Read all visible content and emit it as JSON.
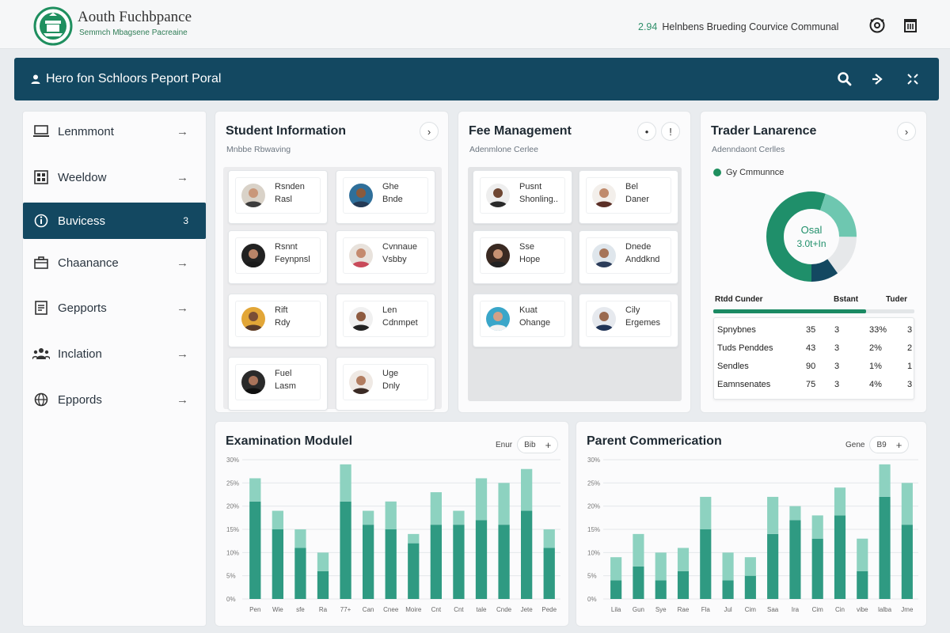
{
  "header": {
    "brand_title": "Aouth Fuchbpance",
    "brand_subtitle": "Semmch Mbagsene Pacreaine",
    "status_number": "2.94",
    "status_text": "Helnbens Brueding Courvice Communal"
  },
  "navbar": {
    "title": "Hero fon Schloors Peport Poral"
  },
  "sidebar": {
    "items": [
      {
        "label": "Lenmmont",
        "icon": "laptop-icon",
        "chevron": "→"
      },
      {
        "label": "Weeldow",
        "icon": "grid-icon",
        "chevron": "→"
      },
      {
        "label": "Buvicess",
        "icon": "info-icon",
        "chevron": "3"
      },
      {
        "label": "Chaanance",
        "icon": "briefcase-icon",
        "chevron": "→"
      },
      {
        "label": "Gepports",
        "icon": "document-icon",
        "chevron": "→"
      },
      {
        "label": "Inclation",
        "icon": "users-icon",
        "chevron": "→"
      },
      {
        "label": "Eppords",
        "icon": "globe-icon",
        "chevron": "→"
      }
    ]
  },
  "student_card": {
    "title": "Student Information",
    "subtitle": "Mnbbe Rbwaving",
    "people": [
      {
        "line1": "Rsnden",
        "line2": "Rasl"
      },
      {
        "line1": "Ghe",
        "line2": "Bnde"
      },
      {
        "line1": "Rsnnt",
        "line2": "Feynpnsl"
      },
      {
        "line1": "Cvnnaue",
        "line2": "Vsbby"
      },
      {
        "line1": "Rift",
        "line2": "Rdy"
      },
      {
        "line1": "Len",
        "line2": "Cdnmpet"
      },
      {
        "line1": "Fuel",
        "line2": "Lasm"
      },
      {
        "line1": "Uge",
        "line2": "Dnly"
      }
    ]
  },
  "fee_card": {
    "title": "Fee Management",
    "subtitle": "Adenmlone Cerlee",
    "people": [
      {
        "line1": "Pusnt",
        "line2": "Shonling.."
      },
      {
        "line1": "Bel",
        "line2": "Daner"
      },
      {
        "line1": "Sse",
        "line2": "Hope"
      },
      {
        "line1": "Dnede",
        "line2": "Anddknd"
      },
      {
        "line1": "Kuat",
        "line2": "Ohange"
      },
      {
        "line1": "Cily",
        "line2": "Ergemes"
      }
    ]
  },
  "trader_card": {
    "title": "Trader Lanarence",
    "subtitle": "Adenndaont Cerlles",
    "legend": "Gy Cmmunnce",
    "donut_line1": "Osal",
    "donut_line2": "3.0t+In",
    "donut_values": [
      0.55,
      0.2,
      0.15,
      0.1
    ],
    "donut_colors": [
      "#1f8f6a",
      "#6ec7b0",
      "#e6e8ea",
      "#134861"
    ],
    "table": {
      "headers": [
        "Rtdd Cunder",
        "Bstant",
        "Tuder"
      ],
      "progress": 0.76,
      "rows": [
        [
          "Spnybnes",
          "35",
          "3",
          "33%",
          "3"
        ],
        [
          "Tuds Penddes",
          "43",
          "3",
          "2%",
          "2"
        ],
        [
          "Sendles",
          "90",
          "3",
          "1%",
          "1"
        ],
        [
          "Eamnsenates",
          "75",
          "3",
          "4%",
          "3"
        ]
      ]
    }
  },
  "exam_card": {
    "title": "Examination Modulel",
    "filter_label": "Enur",
    "pill_value": "Bib"
  },
  "parent_card": {
    "title": "Parent Commerication",
    "filter_label": "Gene",
    "pill_value": "B9"
  },
  "chart_data": [
    {
      "type": "bar",
      "title": "Examination Modulel",
      "categories": [
        "Pen",
        "Wie",
        "sfe",
        "Ra",
        "77+",
        "Can",
        "Cnee",
        "Moire",
        "Cnt",
        "Cnt",
        "tale",
        "Cnde",
        "Jete",
        "Pede"
      ],
      "yticks": [
        "0%",
        "5%",
        "10%",
        "15%",
        "20%",
        "25%",
        "30%"
      ],
      "ylim": [
        0,
        30
      ],
      "series": [
        {
          "values": [
            21,
            15,
            11,
            6,
            21,
            16,
            15,
            12,
            16,
            16,
            17,
            16,
            19,
            11
          ],
          "color": "#2f9a82"
        },
        {
          "values": [
            5,
            4,
            4,
            4,
            8,
            3,
            6,
            2,
            7,
            3,
            9,
            9,
            9,
            4
          ],
          "color": "#8dd2c0"
        }
      ]
    },
    {
      "type": "bar",
      "title": "Parent Commerication",
      "categories": [
        "Lila",
        "Gun",
        "Sye",
        "Rae",
        "Fla",
        "Jul",
        "Cim",
        "Saa",
        "Ira",
        "Cim",
        "Cin",
        "vibe",
        "lalba",
        "Jme"
      ],
      "yticks": [
        "0%",
        "5%",
        "10%",
        "15%",
        "20%",
        "25%",
        "30%"
      ],
      "ylim": [
        0,
        30
      ],
      "series": [
        {
          "values": [
            4,
            7,
            4,
            6,
            15,
            4,
            5,
            14,
            17,
            13,
            18,
            6,
            22,
            16
          ],
          "color": "#2f9a82"
        },
        {
          "values": [
            5,
            7,
            6,
            5,
            7,
            6,
            4,
            8,
            3,
            5,
            6,
            7,
            7,
            9
          ],
          "color": "#8dd2c0"
        }
      ]
    }
  ]
}
